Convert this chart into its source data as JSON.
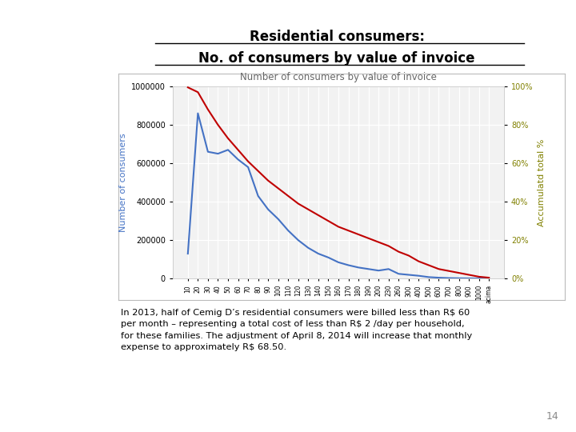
{
  "title_line1": "Residential consumers:",
  "title_line2": "No. of consumers by value of invoice",
  "chart_title": "Number of consumers by value of invoice",
  "ylabel_left": "Number of consumers",
  "ylabel_right": "Accumulatd total %",
  "x_labels": [
    "10",
    "20",
    "30",
    "40",
    "50",
    "60",
    "70",
    "80",
    "90",
    "100",
    "110",
    "120",
    "130",
    "140",
    "150",
    "160",
    "170",
    "180",
    "190",
    "200",
    "230",
    "260",
    "300",
    "400",
    "500",
    "600",
    "700",
    "800",
    "900",
    "1000",
    "acima"
  ],
  "blue_values": [
    130000,
    860000,
    660000,
    650000,
    670000,
    620000,
    580000,
    430000,
    360000,
    310000,
    250000,
    200000,
    160000,
    130000,
    110000,
    85000,
    70000,
    58000,
    50000,
    42000,
    50000,
    25000,
    20000,
    15000,
    8000,
    5000,
    3000,
    2000,
    1500,
    1000,
    500
  ],
  "red_values": [
    99.5,
    97,
    88,
    80,
    73,
    67,
    61,
    56,
    51,
    47,
    43,
    39,
    36,
    33,
    30,
    27,
    25,
    23,
    21,
    19,
    17,
    14,
    12,
    9,
    7,
    5,
    4,
    3,
    2,
    1,
    0.5
  ],
  "blue_color": "#4472C4",
  "red_color": "#C00000",
  "left_ylim": [
    0,
    1000000
  ],
  "right_ylim": [
    0,
    100
  ],
  "left_yticks": [
    0,
    200000,
    400000,
    600000,
    800000,
    1000000
  ],
  "right_yticks": [
    0,
    20,
    40,
    60,
    80,
    100
  ],
  "chart_bg": "#F2F2F2",
  "grid_color": "#FFFFFF",
  "left_label_color": "#4472C4",
  "right_label_color": "#808000",
  "text_block": "In 2013, half of Cemig D’s residential consumers were billed less than R$ 60\nper month – representing a total cost of less than R$ 2 /day per household,\nfor these families. The adjustment of April 8, 2014 will increase that monthly\nexpense to approximately R$ 68.50.",
  "page_number": "14"
}
